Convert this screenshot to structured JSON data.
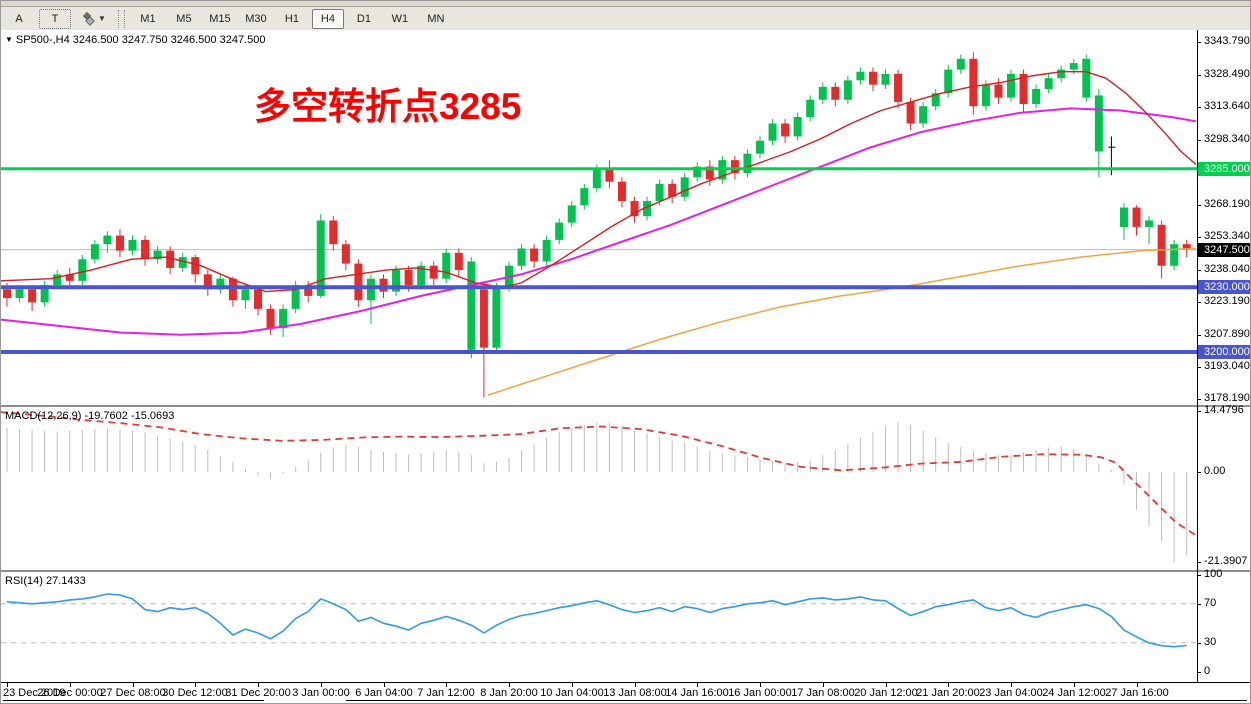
{
  "top_toolbar": {
    "tools": [
      "A",
      "T"
    ],
    "draw_tool_icon": "diamonds-icon",
    "timeframes": [
      "M1",
      "M5",
      "M15",
      "M30",
      "H1",
      "H4",
      "D1",
      "W1",
      "MN"
    ],
    "active_timeframe": "H4"
  },
  "chart": {
    "symbol_line": "SP500-,H4  3246.500 3247.750 3246.500 3247.500",
    "annotation": "多空转折点3285",
    "annotation_color": "#ff0000"
  },
  "panels": {
    "macd_label": "MACD(12,26,9) -19.7602 -15.0693",
    "rsi_label": "RSI(14) 27.1433"
  },
  "chart_data": {
    "type": "candlestick",
    "title": "SP500- H4",
    "up_color": "#00C24E",
    "down_color": "#E52B2B",
    "doji_color": "#000000",
    "current_price": {
      "price": 3247.5,
      "label": "3247.500",
      "line_color": "#bbbbbb",
      "box_color": "#000000"
    },
    "price_ticks": [
      "3343.790",
      "3328.490",
      "3313.640",
      "3298.340",
      "3268.190",
      "3253.340",
      "3238.040",
      "3223.190",
      "3207.890",
      "3193.040",
      "3178.190"
    ],
    "hlines": [
      {
        "price": 3285,
        "label": "3285.000",
        "color": "#00CF4F",
        "width": 3
      },
      {
        "price": 3230,
        "label": "3230.000",
        "color": "#4A55CC",
        "width": 4
      },
      {
        "price": 3200,
        "label": "3200.000",
        "color": "#4A55CC",
        "width": 4
      }
    ],
    "time_labels": [
      "23 Dec 2019",
      "26 Dec 00:00",
      "27 Dec 08:00",
      "30 Dec 12:00",
      "31 Dec 20:00",
      "3 Jan 00:00",
      "6 Jan 04:00",
      "7 Jan 12:00",
      "8 Jan 20:00",
      "10 Jan 04:00",
      "13 Jan 08:00",
      "14 Jan 16:00",
      "16 Jan 00:00",
      "17 Jan 08:00",
      "20 Jan 12:00",
      "21 Jan 20:00",
      "23 Jan 04:00",
      "24 Jan 12:00",
      "27 Jan 16:00"
    ],
    "candles": [
      [
        3229,
        3232,
        3221,
        3225
      ],
      [
        3225,
        3231,
        3223,
        3229
      ],
      [
        3229,
        3231,
        3219,
        3223
      ],
      [
        3223,
        3233,
        3221,
        3231
      ],
      [
        3231,
        3238,
        3229,
        3236
      ],
      [
        3236,
        3239,
        3229,
        3233
      ],
      [
        3233,
        3245,
        3231,
        3243
      ],
      [
        3243,
        3252,
        3241,
        3250
      ],
      [
        3250,
        3256,
        3246,
        3254
      ],
      [
        3254,
        3257,
        3244,
        3247
      ],
      [
        3247,
        3254,
        3245,
        3252
      ],
      [
        3252,
        3254,
        3240,
        3243
      ],
      [
        3243,
        3249,
        3241,
        3247
      ],
      [
        3247,
        3249,
        3236,
        3239
      ],
      [
        3239,
        3246,
        3237,
        3244
      ],
      [
        3244,
        3245,
        3232,
        3236
      ],
      [
        3236,
        3238,
        3226,
        3229
      ],
      [
        3229,
        3236,
        3227,
        3234
      ],
      [
        3234,
        3235,
        3221,
        3224
      ],
      [
        3224,
        3231,
        3220,
        3229
      ],
      [
        3229,
        3230,
        3217,
        3220
      ],
      [
        3220,
        3222,
        3208,
        3211
      ],
      [
        3211,
        3222,
        3207,
        3220
      ],
      [
        3220,
        3233,
        3218,
        3231
      ],
      [
        3231,
        3233,
        3223,
        3226
      ],
      [
        3226,
        3264,
        3225,
        3261
      ],
      [
        3261,
        3263,
        3247,
        3250
      ],
      [
        3250,
        3252,
        3238,
        3241
      ],
      [
        3241,
        3243,
        3221,
        3224
      ],
      [
        3224,
        3236,
        3213,
        3234
      ],
      [
        3234,
        3236,
        3225,
        3228
      ],
      [
        3228,
        3240,
        3226,
        3238
      ],
      [
        3238,
        3240,
        3228,
        3231
      ],
      [
        3231,
        3242,
        3229,
        3240
      ],
      [
        3240,
        3242,
        3231,
        3234
      ],
      [
        3234,
        3248,
        3232,
        3246
      ],
      [
        3246,
        3248,
        3235,
        3238
      ],
      [
        3201,
        3244,
        3197,
        3242
      ],
      [
        3229,
        3231,
        3179,
        3202
      ],
      [
        3202,
        3232,
        3199,
        3230
      ],
      [
        3230,
        3242,
        3228,
        3240
      ],
      [
        3240,
        3250,
        3238,
        3248
      ],
      [
        3248,
        3250,
        3239,
        3242
      ],
      [
        3242,
        3254,
        3240,
        3252
      ],
      [
        3252,
        3262,
        3250,
        3260
      ],
      [
        3260,
        3270,
        3258,
        3268
      ],
      [
        3268,
        3278,
        3266,
        3276
      ],
      [
        3276,
        3287,
        3274,
        3285
      ],
      [
        3285,
        3289,
        3276,
        3279
      ],
      [
        3279,
        3281,
        3267,
        3270
      ],
      [
        3270,
        3272,
        3260,
        3263
      ],
      [
        3263,
        3272,
        3261,
        3270
      ],
      [
        3270,
        3280,
        3268,
        3278
      ],
      [
        3278,
        3280,
        3269,
        3272
      ],
      [
        3272,
        3283,
        3270,
        3281
      ],
      [
        3281,
        3288,
        3279,
        3286
      ],
      [
        3286,
        3289,
        3277,
        3280
      ],
      [
        3280,
        3291,
        3278,
        3289
      ],
      [
        3289,
        3291,
        3280,
        3283
      ],
      [
        3283,
        3294,
        3281,
        3292
      ],
      [
        3292,
        3300,
        3290,
        3298
      ],
      [
        3298,
        3308,
        3296,
        3306
      ],
      [
        3306,
        3308,
        3297,
        3300
      ],
      [
        3300,
        3311,
        3298,
        3309
      ],
      [
        3309,
        3319,
        3307,
        3317
      ],
      [
        3317,
        3325,
        3315,
        3323
      ],
      [
        3323,
        3325,
        3314,
        3317
      ],
      [
        3317,
        3328,
        3315,
        3326
      ],
      [
        3326,
        3332,
        3324,
        3330
      ],
      [
        3330,
        3332,
        3321,
        3324
      ],
      [
        3324,
        3331,
        3322,
        3329
      ],
      [
        3329,
        3331,
        3313,
        3316
      ],
      [
        3316,
        3318,
        3303,
        3306
      ],
      [
        3306,
        3316,
        3304,
        3314
      ],
      [
        3314,
        3322,
        3312,
        3320
      ],
      [
        3320,
        3333,
        3318,
        3331
      ],
      [
        3331,
        3338,
        3329,
        3336
      ],
      [
        3336,
        3339,
        3310,
        3314
      ],
      [
        3314,
        3326,
        3312,
        3324
      ],
      [
        3324,
        3327,
        3315,
        3318
      ],
      [
        3318,
        3331,
        3316,
        3329
      ],
      [
        3329,
        3331,
        3311,
        3315
      ],
      [
        3315,
        3324,
        3313,
        3322
      ],
      [
        3322,
        3329,
        3320,
        3327
      ],
      [
        3327,
        3333,
        3325,
        3331
      ],
      [
        3331,
        3336,
        3329,
        3334
      ],
      [
        3318,
        3338,
        3316,
        3336
      ],
      [
        3293,
        3322,
        3281,
        3319
      ],
      [
        3295,
        3300,
        3282,
        3295,
        1
      ],
      [
        3258,
        3269,
        3252,
        3267
      ],
      [
        3267,
        3268,
        3254,
        3258
      ],
      [
        3258,
        3263,
        3250,
        3261
      ],
      [
        3259,
        3261,
        3234,
        3240
      ],
      [
        3240,
        3252,
        3238,
        3250
      ],
      [
        3250,
        3252,
        3244,
        3247.5
      ]
    ],
    "ma_fast_red": {
      "color": "#D21F1F",
      "points": [
        [
          0,
          3233
        ],
        [
          50,
          3234
        ],
        [
          90,
          3238
        ],
        [
          130,
          3243
        ],
        [
          165,
          3244
        ],
        [
          200,
          3240
        ],
        [
          235,
          3233
        ],
        [
          265,
          3228
        ],
        [
          295,
          3229
        ],
        [
          325,
          3234
        ],
        [
          355,
          3236
        ],
        [
          385,
          3238
        ],
        [
          415,
          3239
        ],
        [
          445,
          3237
        ],
        [
          475,
          3232
        ],
        [
          500,
          3230
        ],
        [
          520,
          3232
        ],
        [
          550,
          3240
        ],
        [
          580,
          3249
        ],
        [
          610,
          3258
        ],
        [
          640,
          3266
        ],
        [
          670,
          3272
        ],
        [
          700,
          3278
        ],
        [
          730,
          3283
        ],
        [
          760,
          3288
        ],
        [
          790,
          3293
        ],
        [
          820,
          3299
        ],
        [
          850,
          3306
        ],
        [
          880,
          3312
        ],
        [
          910,
          3316
        ],
        [
          940,
          3320
        ],
        [
          970,
          3323
        ],
        [
          1000,
          3325
        ],
        [
          1030,
          3328
        ],
        [
          1060,
          3330
        ],
        [
          1085,
          3330
        ],
        [
          1105,
          3327
        ],
        [
          1125,
          3320
        ],
        [
          1145,
          3311
        ],
        [
          1165,
          3301
        ],
        [
          1180,
          3293
        ],
        [
          1195,
          3287
        ]
      ]
    },
    "ma_mid_magenta": {
      "color": "#E320E3",
      "points": [
        [
          0,
          3215
        ],
        [
          60,
          3212
        ],
        [
          120,
          3209
        ],
        [
          180,
          3208
        ],
        [
          240,
          3209
        ],
        [
          300,
          3213
        ],
        [
          360,
          3219
        ],
        [
          420,
          3226
        ],
        [
          470,
          3231
        ],
        [
          520,
          3236
        ],
        [
          570,
          3243
        ],
        [
          620,
          3251
        ],
        [
          670,
          3259
        ],
        [
          720,
          3268
        ],
        [
          770,
          3277
        ],
        [
          820,
          3286
        ],
        [
          870,
          3295
        ],
        [
          920,
          3302
        ],
        [
          970,
          3307
        ],
        [
          1020,
          3311
        ],
        [
          1070,
          3313
        ],
        [
          1120,
          3312
        ],
        [
          1170,
          3309
        ],
        [
          1195,
          3307
        ]
      ]
    },
    "ma_slow_orange": {
      "color": "#EFA53C",
      "points": [
        [
          487,
          3180
        ],
        [
          540,
          3188
        ],
        [
          600,
          3197
        ],
        [
          660,
          3206
        ],
        [
          720,
          3214
        ],
        [
          780,
          3221
        ],
        [
          840,
          3226
        ],
        [
          900,
          3230
        ],
        [
          960,
          3235
        ],
        [
          1020,
          3240
        ],
        [
          1080,
          3244
        ],
        [
          1140,
          3247
        ],
        [
          1195,
          3248
        ]
      ]
    },
    "macd": {
      "params": "MACD(12,26,9)",
      "main_value": -19.7602,
      "signal_value": -15.0693,
      "ticks": [
        "14.4796",
        "0.00",
        "-21.3907"
      ],
      "tick_values": [
        14.4796,
        0,
        -21.3907
      ],
      "hist_color": "#BDBDBD",
      "signal_color": "#E53935",
      "histogram": [
        10.5,
        10.2,
        10.0,
        9.8,
        9.6,
        9.8,
        10.0,
        10.3,
        10.4,
        10.1,
        9.9,
        9.4,
        8.7,
        8.0,
        7.4,
        6.4,
        5.2,
        3.8,
        2.4,
        0.8,
        -0.9,
        -1.6,
        -0.5,
        1.2,
        2.8,
        4.6,
        5.8,
        6.4,
        6.0,
        5.2,
        4.8,
        4.5,
        4.2,
        4.5,
        4.8,
        5.2,
        4.8,
        4.0,
        2.0,
        2.4,
        3.4,
        5.0,
        6.6,
        8.2,
        9.6,
        10.4,
        11.2,
        11.8,
        11.6,
        11.0,
        10.0,
        9.2,
        8.4,
        7.5,
        6.9,
        6.0,
        5.1,
        4.5,
        4.0,
        3.5,
        3.1,
        2.7,
        2.3,
        2.3,
        2.7,
        4.0,
        5.2,
        6.6,
        8.2,
        9.6,
        11.0,
        11.8,
        11.2,
        9.8,
        8.2,
        6.9,
        5.9,
        5.0,
        4.4,
        4.0,
        4.2,
        4.6,
        5.2,
        5.8,
        6.2,
        5.6,
        4.0,
        2.0,
        0.5,
        -3.0,
        -9.0,
        -13.0,
        -16.5,
        -21.39,
        -19.76
      ],
      "signal_points": [
        [
          0,
          14.2
        ],
        [
          40,
          13.4
        ],
        [
          80,
          12.4
        ],
        [
          120,
          11.6
        ],
        [
          160,
          10.6
        ],
        [
          200,
          9.0
        ],
        [
          240,
          8.0
        ],
        [
          280,
          7.4
        ],
        [
          320,
          7.6
        ],
        [
          360,
          8.2
        ],
        [
          400,
          8.4
        ],
        [
          440,
          8.3
        ],
        [
          480,
          8.6
        ],
        [
          520,
          9.0
        ],
        [
          560,
          10.4
        ],
        [
          600,
          10.8
        ],
        [
          640,
          10.2
        ],
        [
          680,
          8.6
        ],
        [
          720,
          6.2
        ],
        [
          760,
          3.4
        ],
        [
          800,
          1.2
        ],
        [
          840,
          0.4
        ],
        [
          880,
          1.0
        ],
        [
          920,
          2.0
        ],
        [
          960,
          2.4
        ],
        [
          1000,
          3.6
        ],
        [
          1040,
          4.2
        ],
        [
          1080,
          4.1
        ],
        [
          1100,
          3.5
        ],
        [
          1115,
          2.2
        ],
        [
          1130,
          -1.5
        ],
        [
          1145,
          -5
        ],
        [
          1160,
          -8.5
        ],
        [
          1175,
          -12
        ],
        [
          1195,
          -15.07
        ]
      ]
    },
    "rsi": {
      "params": "RSI(14)",
      "last_value": 27.1433,
      "ticks": [
        "100",
        "70",
        "30",
        "0"
      ],
      "tick_values": [
        100,
        70,
        30,
        0
      ],
      "line_color": "#2F9BE8",
      "level_color": "#C8C8C8",
      "levels": [
        70,
        30
      ],
      "values": [
        72,
        71,
        70,
        71,
        72,
        74,
        75,
        77,
        80,
        79,
        75,
        64,
        62,
        66,
        64,
        66,
        60,
        50,
        38,
        44,
        40,
        34,
        42,
        55,
        62,
        75,
        70,
        64,
        52,
        56,
        50,
        47,
        43,
        50,
        53,
        57,
        53,
        48,
        40,
        48,
        54,
        58,
        60,
        63,
        66,
        68,
        71,
        73,
        69,
        64,
        61,
        63,
        66,
        62,
        67,
        65,
        61,
        65,
        67,
        70,
        71,
        73,
        69,
        72,
        75,
        76,
        74,
        75,
        77,
        74,
        73,
        65,
        58,
        62,
        67,
        69,
        72,
        74,
        66,
        63,
        66,
        59,
        56,
        61,
        64,
        67,
        69,
        65,
        57,
        43,
        36,
        30,
        27,
        26,
        27.14
      ]
    }
  }
}
